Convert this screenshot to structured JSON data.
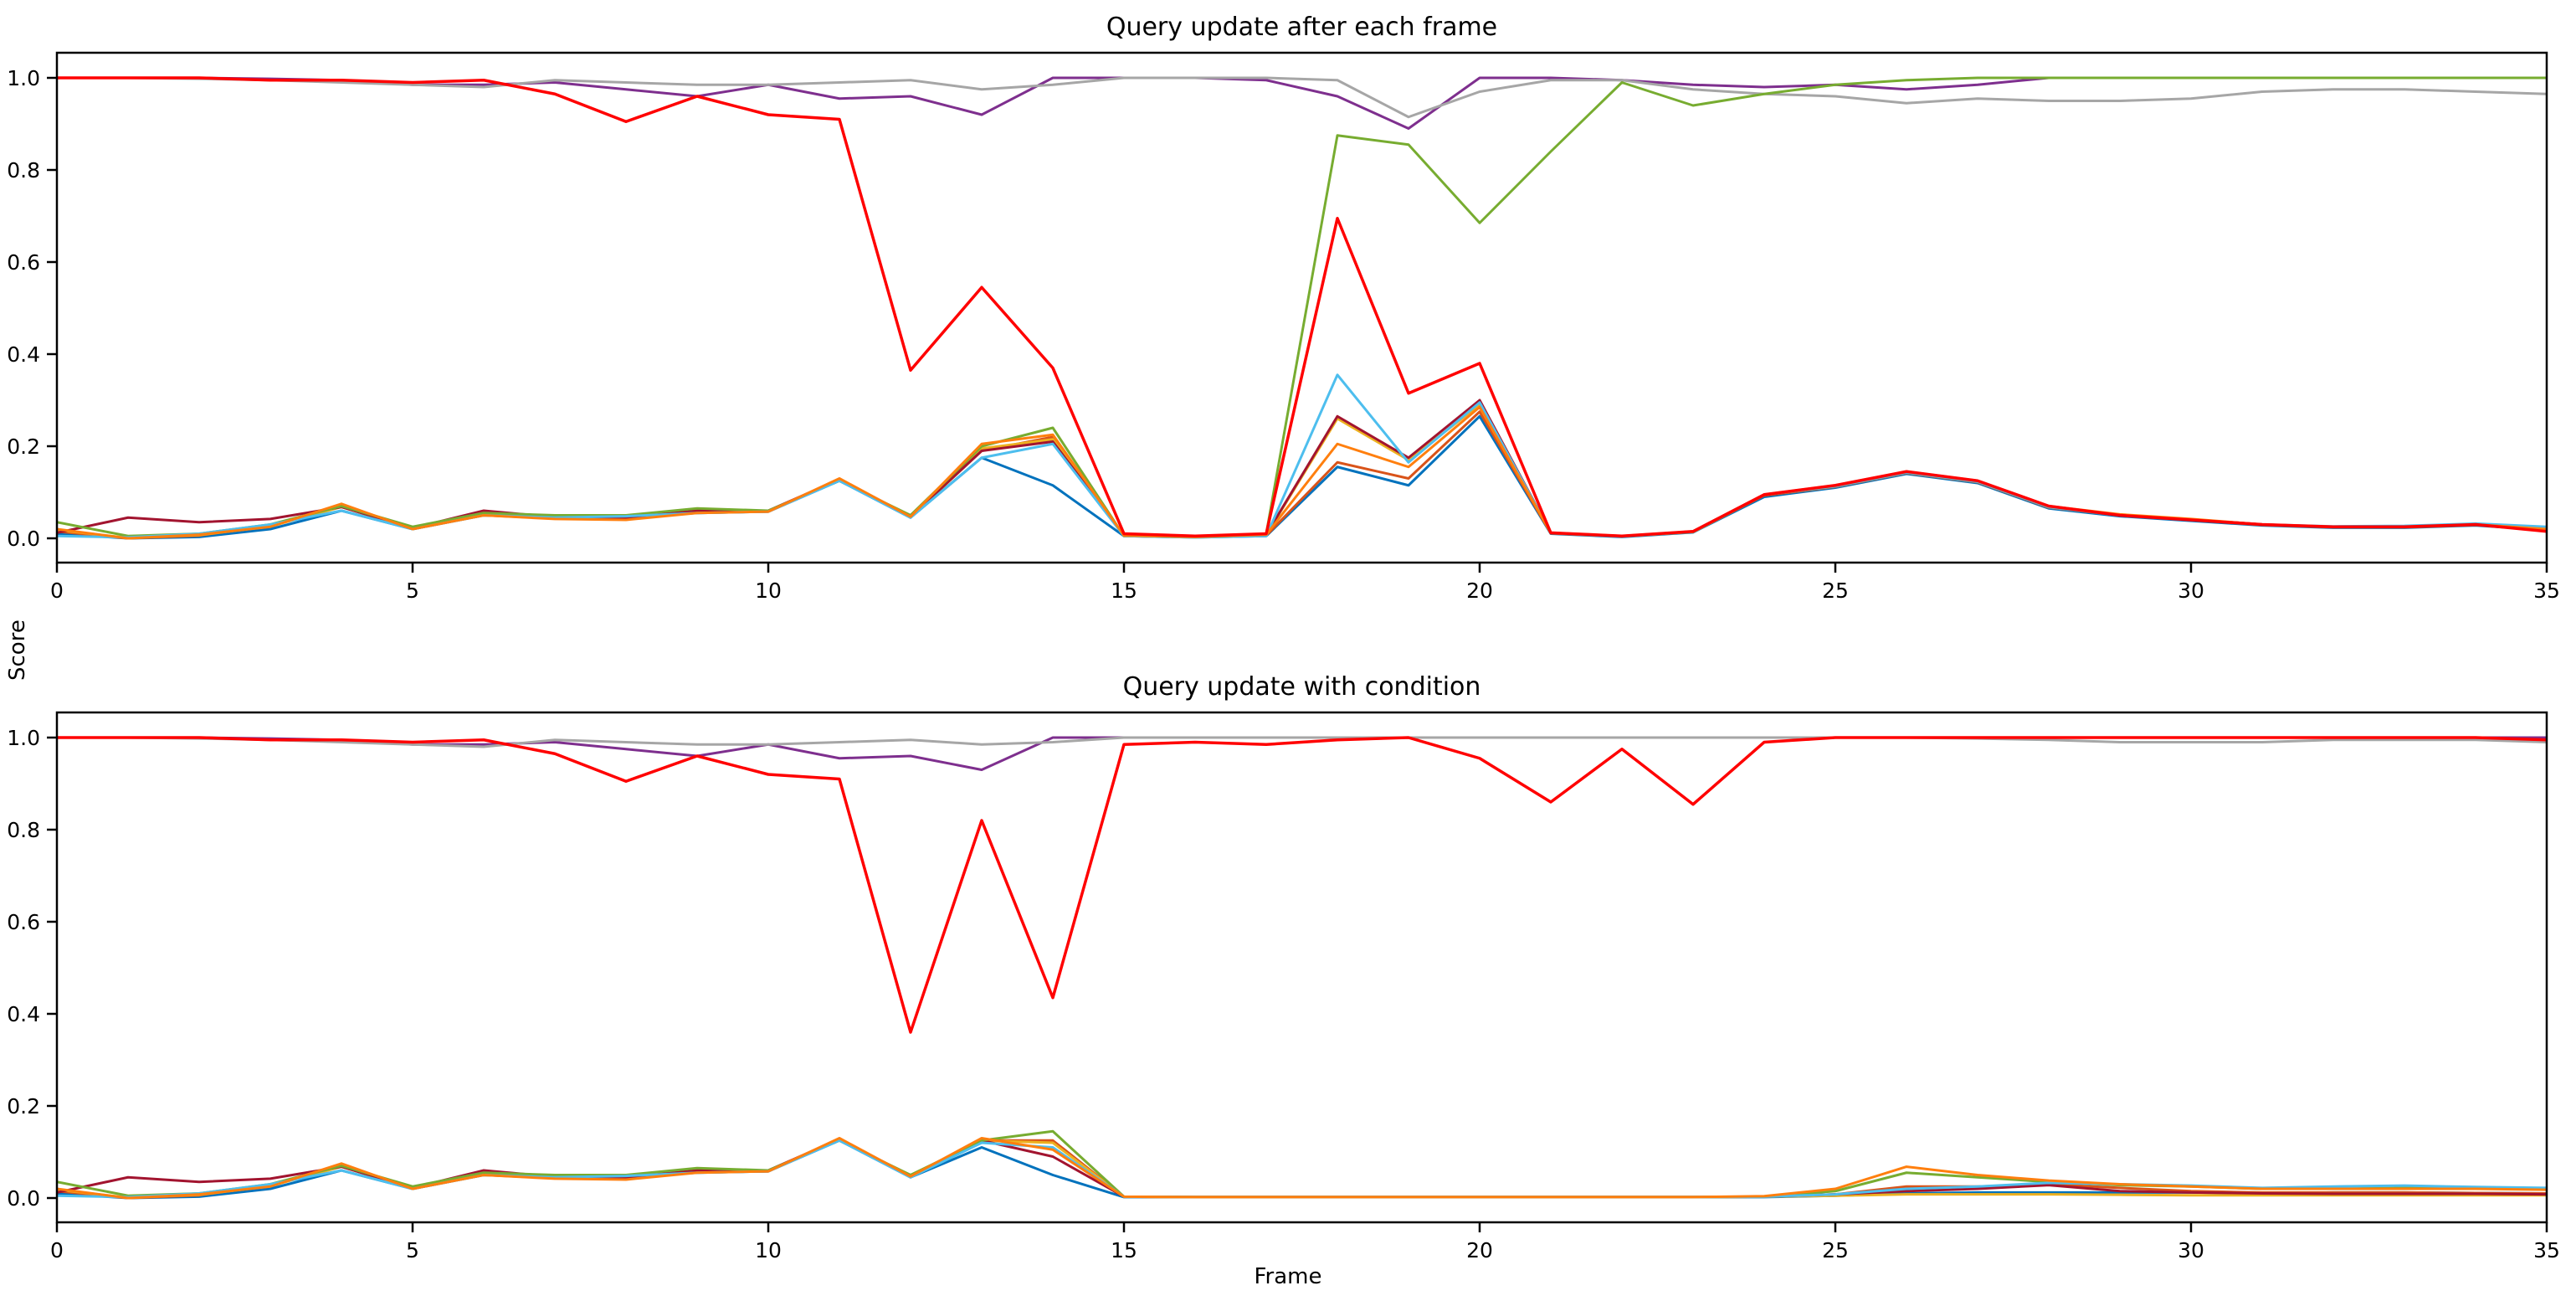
{
  "figure": {
    "xlabel": "Frame",
    "ylabel": "Score",
    "background_color": "#ffffff",
    "axes_color": "#000000"
  },
  "chart_data": [
    {
      "type": "line",
      "title": "Query update after each frame",
      "xlabel": "",
      "ylabel": "Score",
      "xlim": [
        0,
        35
      ],
      "ylim": [
        -0.055,
        1.055
      ],
      "grid": false,
      "legend_position": "none",
      "xticks": [
        "0",
        "5",
        "10",
        "15",
        "20",
        "25",
        "30",
        "35"
      ],
      "yticks": [
        "0.0",
        "0.2",
        "0.4",
        "0.6",
        "0.8",
        "1.0"
      ],
      "x": [
        0,
        1,
        2,
        3,
        4,
        5,
        6,
        7,
        8,
        9,
        10,
        11,
        12,
        13,
        14,
        15,
        16,
        17,
        18,
        19,
        20,
        21,
        22,
        23,
        24,
        25,
        26,
        27,
        28,
        29,
        30,
        31,
        32,
        33,
        34,
        35
      ],
      "series": [
        {
          "name": "blue",
          "color": "#0072bd",
          "width": 3,
          "values": [
            0.01,
            0.0,
            0.003,
            0.02,
            0.06,
            0.02,
            0.05,
            0.045,
            0.045,
            0.055,
            0.058,
            0.125,
            0.045,
            0.175,
            0.115,
            0.005,
            0.002,
            0.005,
            0.155,
            0.115,
            0.265,
            0.01,
            0.003,
            0.013,
            0.09,
            0.11,
            0.14,
            0.12,
            0.065,
            0.048,
            0.038,
            0.028,
            0.023,
            0.023,
            0.028,
            0.018
          ]
        },
        {
          "name": "orange-red",
          "color": "#d95319",
          "width": 3,
          "values": [
            0.015,
            0.0,
            0.006,
            0.028,
            0.07,
            0.02,
            0.05,
            0.043,
            0.042,
            0.056,
            0.058,
            0.127,
            0.046,
            0.19,
            0.22,
            0.005,
            0.003,
            0.006,
            0.165,
            0.13,
            0.275,
            0.011,
            0.004,
            0.014,
            0.093,
            0.112,
            0.142,
            0.122,
            0.067,
            0.05,
            0.04,
            0.029,
            0.024,
            0.024,
            0.029,
            0.019
          ]
        },
        {
          "name": "yellow",
          "color": "#edb120",
          "width": 3,
          "values": [
            0.018,
            0.001,
            0.007,
            0.026,
            0.068,
            0.021,
            0.05,
            0.044,
            0.043,
            0.057,
            0.059,
            0.128,
            0.046,
            0.195,
            0.215,
            0.005,
            0.003,
            0.007,
            0.26,
            0.17,
            0.29,
            0.012,
            0.004,
            0.014,
            0.094,
            0.113,
            0.143,
            0.123,
            0.068,
            0.051,
            0.041,
            0.03,
            0.025,
            0.025,
            0.03,
            0.02
          ]
        },
        {
          "name": "dark-red",
          "color": "#a2142f",
          "width": 3,
          "values": [
            0.012,
            0.045,
            0.035,
            0.042,
            0.068,
            0.022,
            0.06,
            0.046,
            0.045,
            0.06,
            0.06,
            0.128,
            0.048,
            0.19,
            0.21,
            0.006,
            0.003,
            0.008,
            0.265,
            0.175,
            0.3,
            0.012,
            0.004,
            0.015,
            0.094,
            0.114,
            0.144,
            0.124,
            0.069,
            0.051,
            0.041,
            0.03,
            0.025,
            0.025,
            0.03,
            0.02
          ]
        },
        {
          "name": "purple",
          "color": "#7e2f8e",
          "width": 3,
          "values": [
            1.0,
            1.0,
            1.0,
            0.998,
            0.995,
            0.985,
            0.985,
            0.99,
            0.975,
            0.96,
            0.985,
            0.955,
            0.96,
            0.92,
            1.0,
            1.0,
            1.0,
            0.995,
            0.96,
            0.89,
            1.0,
            1.0,
            0.995,
            0.985,
            0.98,
            0.985,
            0.975,
            0.985,
            1.0,
            1.0,
            1.0,
            1.0,
            1.0,
            1.0,
            1.0,
            1.0
          ]
        },
        {
          "name": "gray",
          "color": "#a6a6a6",
          "width": 3,
          "values": [
            1.0,
            1.0,
            0.998,
            0.995,
            0.99,
            0.985,
            0.98,
            0.995,
            0.99,
            0.985,
            0.985,
            0.99,
            0.995,
            0.975,
            0.985,
            1.0,
            1.0,
            1.0,
            0.995,
            0.915,
            0.97,
            0.995,
            0.995,
            0.975,
            0.965,
            0.96,
            0.945,
            0.955,
            0.95,
            0.95,
            0.955,
            0.97,
            0.975,
            0.975,
            0.97,
            0.965
          ]
        },
        {
          "name": "green",
          "color": "#77ac30",
          "width": 3,
          "values": [
            0.035,
            0.005,
            0.01,
            0.03,
            0.07,
            0.025,
            0.055,
            0.05,
            0.05,
            0.065,
            0.06,
            0.125,
            0.05,
            0.2,
            0.24,
            0.005,
            0.003,
            0.01,
            0.875,
            0.855,
            0.685,
            0.84,
            0.99,
            0.94,
            0.965,
            0.985,
            0.995,
            1.0,
            1.0,
            1.0,
            1.0,
            1.0,
            1.0,
            1.0,
            1.0,
            1.0
          ]
        },
        {
          "name": "sky-blue",
          "color": "#4dbeee",
          "width": 3,
          "values": [
            0.005,
            0.002,
            0.01,
            0.03,
            0.06,
            0.02,
            0.05,
            0.045,
            0.048,
            0.055,
            0.058,
            0.125,
            0.045,
            0.175,
            0.205,
            0.005,
            0.002,
            0.005,
            0.355,
            0.165,
            0.295,
            0.012,
            0.004,
            0.015,
            0.095,
            0.113,
            0.143,
            0.123,
            0.068,
            0.05,
            0.04,
            0.03,
            0.026,
            0.027,
            0.032,
            0.025
          ]
        },
        {
          "name": "orange",
          "color": "#ff7f0e",
          "width": 3,
          "values": [
            0.02,
            0.0,
            0.008,
            0.025,
            0.075,
            0.02,
            0.05,
            0.042,
            0.04,
            0.055,
            0.058,
            0.13,
            0.047,
            0.205,
            0.225,
            0.006,
            0.003,
            0.008,
            0.205,
            0.155,
            0.285,
            0.012,
            0.005,
            0.015,
            0.095,
            0.115,
            0.145,
            0.125,
            0.07,
            0.052,
            0.042,
            0.03,
            0.025,
            0.025,
            0.03,
            0.02
          ]
        },
        {
          "name": "red",
          "color": "#ff0000",
          "width": 3.5,
          "values": [
            1.0,
            1.0,
            1.0,
            0.995,
            0.995,
            0.99,
            0.995,
            0.965,
            0.905,
            0.96,
            0.92,
            0.91,
            0.365,
            0.545,
            0.37,
            0.01,
            0.005,
            0.01,
            0.695,
            0.315,
            0.38,
            0.012,
            0.005,
            0.015,
            0.095,
            0.115,
            0.145,
            0.125,
            0.07,
            0.05,
            0.04,
            0.03,
            0.025,
            0.025,
            0.03,
            0.015
          ]
        }
      ]
    },
    {
      "type": "line",
      "title": "Query update with condition",
      "xlabel": "Frame",
      "ylabel": "Score",
      "xlim": [
        0,
        35
      ],
      "ylim": [
        -0.055,
        1.055
      ],
      "grid": false,
      "legend_position": "none",
      "xticks": [
        "0",
        "5",
        "10",
        "15",
        "20",
        "25",
        "30",
        "35"
      ],
      "yticks": [
        "0.0",
        "0.2",
        "0.4",
        "0.6",
        "0.8",
        "1.0"
      ],
      "x": [
        0,
        1,
        2,
        3,
        4,
        5,
        6,
        7,
        8,
        9,
        10,
        11,
        12,
        13,
        14,
        15,
        16,
        17,
        18,
        19,
        20,
        21,
        22,
        23,
        24,
        25,
        26,
        27,
        28,
        29,
        30,
        31,
        32,
        33,
        34,
        35
      ],
      "series": [
        {
          "name": "blue",
          "color": "#0072bd",
          "width": 3,
          "values": [
            0.01,
            0.0,
            0.003,
            0.02,
            0.06,
            0.02,
            0.05,
            0.045,
            0.045,
            0.055,
            0.058,
            0.125,
            0.045,
            0.11,
            0.05,
            0.002,
            0.002,
            0.002,
            0.002,
            0.002,
            0.002,
            0.002,
            0.002,
            0.002,
            0.002,
            0.005,
            0.01,
            0.012,
            0.012,
            0.012,
            0.012,
            0.01,
            0.012,
            0.012,
            0.011,
            0.01
          ]
        },
        {
          "name": "orange-red",
          "color": "#d95319",
          "width": 3,
          "values": [
            0.015,
            0.0,
            0.006,
            0.028,
            0.07,
            0.02,
            0.05,
            0.043,
            0.042,
            0.056,
            0.058,
            0.127,
            0.046,
            0.125,
            0.125,
            0.003,
            0.002,
            0.002,
            0.002,
            0.002,
            0.002,
            0.002,
            0.002,
            0.002,
            0.003,
            0.008,
            0.025,
            0.025,
            0.03,
            0.022,
            0.015,
            0.012,
            0.012,
            0.012,
            0.011,
            0.01
          ]
        },
        {
          "name": "yellow",
          "color": "#edb120",
          "width": 3,
          "values": [
            0.018,
            0.001,
            0.007,
            0.026,
            0.068,
            0.021,
            0.05,
            0.044,
            0.043,
            0.057,
            0.059,
            0.128,
            0.046,
            0.125,
            0.12,
            0.003,
            0.002,
            0.002,
            0.002,
            0.002,
            0.002,
            0.002,
            0.002,
            0.002,
            0.003,
            0.005,
            0.008,
            0.008,
            0.008,
            0.007,
            0.006,
            0.006,
            0.006,
            0.006,
            0.006,
            0.006
          ]
        },
        {
          "name": "dark-red",
          "color": "#a2142f",
          "width": 3,
          "values": [
            0.012,
            0.045,
            0.035,
            0.042,
            0.068,
            0.022,
            0.06,
            0.046,
            0.045,
            0.06,
            0.06,
            0.128,
            0.048,
            0.125,
            0.09,
            0.003,
            0.002,
            0.002,
            0.002,
            0.002,
            0.002,
            0.002,
            0.002,
            0.002,
            0.003,
            0.008,
            0.015,
            0.02,
            0.028,
            0.015,
            0.012,
            0.01,
            0.009,
            0.009,
            0.009,
            0.008
          ]
        },
        {
          "name": "purple",
          "color": "#7e2f8e",
          "width": 3,
          "values": [
            1.0,
            1.0,
            1.0,
            0.998,
            0.995,
            0.985,
            0.985,
            0.99,
            0.975,
            0.96,
            0.985,
            0.955,
            0.96,
            0.93,
            1.0,
            1.0,
            1.0,
            1.0,
            1.0,
            1.0,
            1.0,
            1.0,
            1.0,
            1.0,
            1.0,
            1.0,
            1.0,
            1.0,
            1.0,
            1.0,
            1.0,
            1.0,
            1.0,
            1.0,
            1.0,
            1.0
          ]
        },
        {
          "name": "gray",
          "color": "#a6a6a6",
          "width": 3,
          "values": [
            1.0,
            1.0,
            0.998,
            0.995,
            0.99,
            0.985,
            0.98,
            0.995,
            0.99,
            0.985,
            0.985,
            0.99,
            0.995,
            0.985,
            0.99,
            1.0,
            1.0,
            1.0,
            1.0,
            1.0,
            1.0,
            1.0,
            1.0,
            1.0,
            1.0,
            1.0,
            1.0,
            0.998,
            0.995,
            0.99,
            0.99,
            0.99,
            0.995,
            0.995,
            0.995,
            0.99
          ]
        },
        {
          "name": "green",
          "color": "#77ac30",
          "width": 3,
          "values": [
            0.035,
            0.005,
            0.01,
            0.03,
            0.07,
            0.025,
            0.055,
            0.05,
            0.05,
            0.065,
            0.06,
            0.125,
            0.05,
            0.125,
            0.145,
            0.003,
            0.002,
            0.002,
            0.002,
            0.002,
            0.002,
            0.002,
            0.002,
            0.002,
            0.003,
            0.015,
            0.055,
            0.045,
            0.035,
            0.028,
            0.025,
            0.02,
            0.02,
            0.022,
            0.02,
            0.02
          ]
        },
        {
          "name": "sky-blue",
          "color": "#4dbeee",
          "width": 3,
          "values": [
            0.005,
            0.002,
            0.01,
            0.03,
            0.06,
            0.02,
            0.05,
            0.045,
            0.048,
            0.055,
            0.058,
            0.125,
            0.045,
            0.12,
            0.11,
            0.003,
            0.002,
            0.002,
            0.002,
            0.002,
            0.002,
            0.002,
            0.002,
            0.002,
            0.003,
            0.008,
            0.02,
            0.025,
            0.033,
            0.03,
            0.027,
            0.022,
            0.025,
            0.027,
            0.024,
            0.022
          ]
        },
        {
          "name": "orange",
          "color": "#ff7f0e",
          "width": 3,
          "values": [
            0.02,
            0.0,
            0.008,
            0.025,
            0.075,
            0.02,
            0.05,
            0.042,
            0.04,
            0.055,
            0.058,
            0.13,
            0.047,
            0.13,
            0.105,
            0.003,
            0.002,
            0.002,
            0.002,
            0.002,
            0.002,
            0.002,
            0.002,
            0.002,
            0.004,
            0.02,
            0.068,
            0.05,
            0.038,
            0.03,
            0.025,
            0.02,
            0.02,
            0.02,
            0.02,
            0.018
          ]
        },
        {
          "name": "red",
          "color": "#ff0000",
          "width": 3.5,
          "values": [
            1.0,
            1.0,
            1.0,
            0.995,
            0.995,
            0.99,
            0.995,
            0.965,
            0.905,
            0.96,
            0.92,
            0.91,
            0.36,
            0.82,
            0.435,
            0.985,
            0.99,
            0.985,
            0.995,
            1.0,
            0.955,
            0.86,
            0.975,
            0.855,
            0.99,
            1.0,
            1.0,
            1.0,
            1.0,
            1.0,
            1.0,
            1.0,
            1.0,
            1.0,
            1.0,
            0.995
          ]
        }
      ]
    }
  ]
}
